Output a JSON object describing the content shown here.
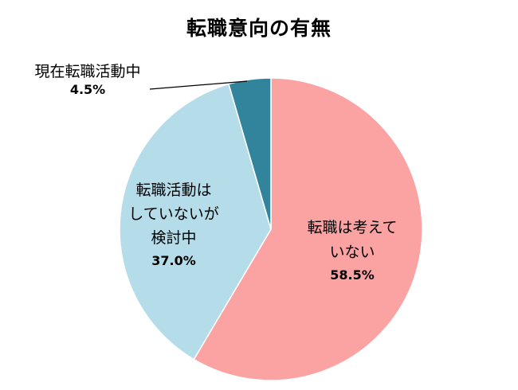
{
  "chart_data": {
    "type": "pie",
    "title": "転職意向の有無",
    "start_angle_deg": 0,
    "direction": "clockwise",
    "slices": [
      {
        "label": "転職は考えていない",
        "label_lines": [
          "転職は考えて",
          "いない"
        ],
        "value": 58.5,
        "value_label": "58.5%",
        "color": "#fba3a3"
      },
      {
        "label": "転職活動はしていないが検討中",
        "label_lines": [
          "転職活動は",
          "していないが",
          "検討中"
        ],
        "value": 37.0,
        "value_label": "37.0%",
        "color": "#b5dde9"
      },
      {
        "label": "現在転職活動中",
        "label_lines": [
          "現在転職活動中"
        ],
        "value": 4.5,
        "value_label": "4.5%",
        "color": "#31849b"
      }
    ],
    "legend": "none"
  }
}
